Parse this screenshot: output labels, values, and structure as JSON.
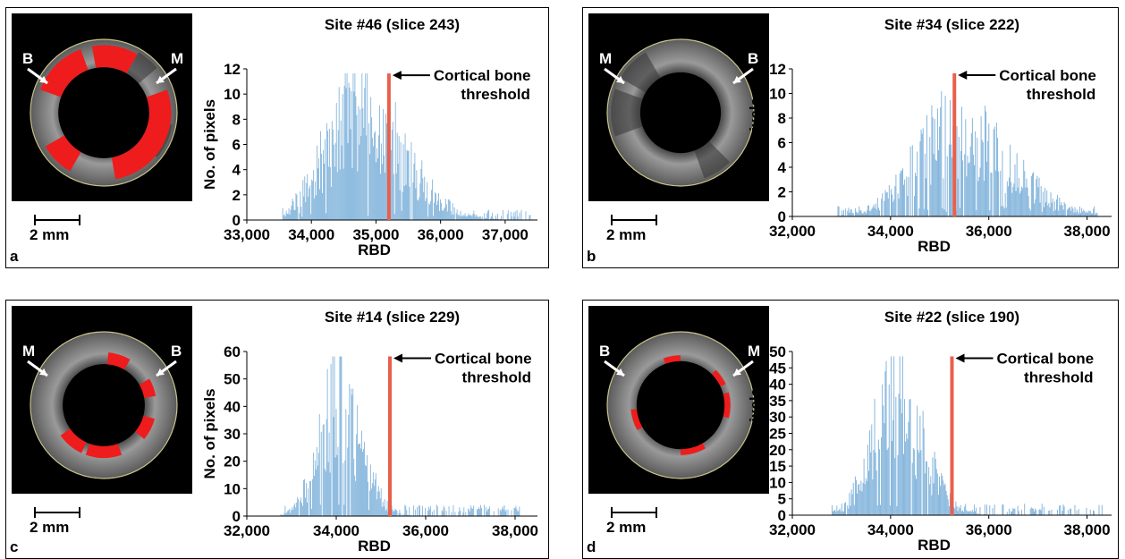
{
  "figure": {
    "panels": [
      {
        "letter": "a",
        "ct_image": {
          "left_label": "B",
          "right_label": "M",
          "scale_label": "2 mm"
        },
        "chart_data": {
          "type": "bar",
          "title": "Site #46 (slice 243)",
          "xlabel": "RBD",
          "ylabel": "No. of pixels",
          "xlim": [
            33000,
            37500
          ],
          "ylim": [
            0,
            12
          ],
          "xticks": [
            33000,
            34000,
            35000,
            36000,
            37000
          ],
          "xtick_labels": [
            "33,000",
            "34,000",
            "35,000",
            "36,000",
            "37,000"
          ],
          "yticks": [
            0,
            2,
            4,
            6,
            8,
            10,
            12
          ],
          "ytick_labels": [
            "0",
            "2",
            "4",
            "6",
            "8",
            "10",
            "12"
          ],
          "threshold": 35200,
          "annotation": [
            "Cortical bone",
            "threshold"
          ],
          "dist": {
            "x_start": 33550,
            "x_end": 37400,
            "mode": 34700,
            "sigma_left": 500,
            "sigma_right": 700,
            "peak": 10,
            "seed": 46
          }
        }
      },
      {
        "letter": "b",
        "ct_image": {
          "left_label": "M",
          "right_label": "B",
          "scale_label": "2 mm"
        },
        "chart_data": {
          "type": "bar",
          "title": "Site #34 (slice 222)",
          "xlabel": "RBD",
          "ylabel": "No. of pixels",
          "xlim": [
            32000,
            38500
          ],
          "ylim": [
            0,
            12
          ],
          "xticks": [
            32000,
            34000,
            36000,
            38000
          ],
          "xtick_labels": [
            "32,000",
            "34,000",
            "36,000",
            "38,000"
          ],
          "yticks": [
            0,
            2,
            4,
            6,
            8,
            10,
            12
          ],
          "ytick_labels": [
            "0",
            "2",
            "4",
            "6",
            "8",
            "10",
            "12"
          ],
          "threshold": 35300,
          "annotation": [
            "Cortical bone",
            "threshold"
          ],
          "dist": {
            "x_start": 32900,
            "x_end": 38200,
            "mode": 35300,
            "sigma_left": 800,
            "sigma_right": 1100,
            "peak": 8,
            "seed": 34
          }
        }
      },
      {
        "letter": "c",
        "ct_image": {
          "left_label": "M",
          "right_label": "B",
          "scale_label": "2 mm"
        },
        "chart_data": {
          "type": "bar",
          "title": "Site #14 (slice 229)",
          "xlabel": "RBD",
          "ylabel": "No. of pixels",
          "xlim": [
            32000,
            38500
          ],
          "ylim": [
            0,
            60
          ],
          "xticks": [
            32000,
            34000,
            36000,
            38000
          ],
          "xtick_labels": [
            "32,000",
            "34,000",
            "36,000",
            "38,000"
          ],
          "yticks": [
            0,
            10,
            20,
            30,
            40,
            50,
            60
          ],
          "ytick_labels": [
            "0",
            "10",
            "20",
            "30",
            "40",
            "50",
            "60"
          ],
          "threshold": 35200,
          "annotation": [
            "Cortical bone",
            "threshold"
          ],
          "dist": {
            "x_start": 32750,
            "x_end": 38100,
            "mode": 34000,
            "sigma_left": 420,
            "sigma_right": 520,
            "peak": 48,
            "seed": 14
          }
        }
      },
      {
        "letter": "d",
        "ct_image": {
          "left_label": "B",
          "right_label": "M",
          "scale_label": "2 mm"
        },
        "chart_data": {
          "type": "bar",
          "title": "Site #22 (slice 190)",
          "xlabel": "RBD",
          "ylabel": "No. of pixels",
          "xlim": [
            32000,
            38500
          ],
          "ylim": [
            0,
            50
          ],
          "xticks": [
            32000,
            34000,
            36000,
            38000
          ],
          "xtick_labels": [
            "32,000",
            "34,000",
            "36,000",
            "38,000"
          ],
          "yticks": [
            0,
            5,
            10,
            15,
            20,
            25,
            30,
            35,
            40,
            45,
            50
          ],
          "ytick_labels": [
            "0",
            "5",
            "10",
            "15",
            "20",
            "25",
            "30",
            "35",
            "40",
            "45",
            "50"
          ],
          "threshold": 35250,
          "annotation": [
            "Cortical bone",
            "threshold"
          ],
          "dist": {
            "x_start": 32800,
            "x_end": 38300,
            "mode": 34100,
            "sigma_left": 480,
            "sigma_right": 560,
            "peak": 40,
            "seed": 22
          }
        }
      }
    ]
  },
  "colors": {
    "bar": "#6fa8d6",
    "threshold": "#e8604c",
    "bone": "#ee1c1c",
    "ring_outline": "#c8c48a"
  }
}
